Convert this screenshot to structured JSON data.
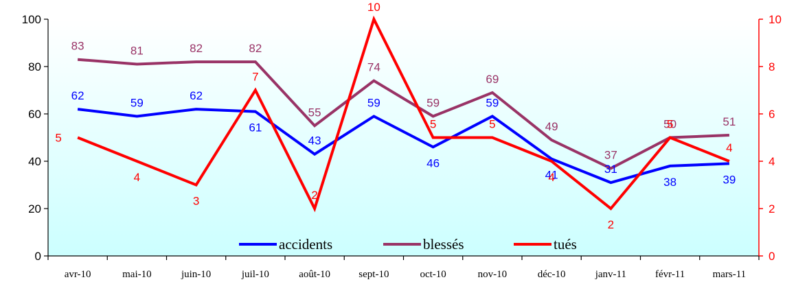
{
  "chart_data": {
    "type": "line",
    "categories": [
      "avr-10",
      "mai-10",
      "juin-10",
      "juil-10",
      "août-10",
      "sept-10",
      "oct-10",
      "nov-10",
      "déc-10",
      "janv-11",
      "févr-11",
      "mars-11"
    ],
    "series": [
      {
        "name": "accidents",
        "axis": "left",
        "color": "#0000ff",
        "values": [
          62,
          59,
          62,
          61,
          43,
          59,
          46,
          59,
          41,
          31,
          38,
          39
        ]
      },
      {
        "name": "blessés",
        "axis": "left",
        "color": "#993366",
        "values": [
          83,
          81,
          82,
          82,
          55,
          74,
          59,
          69,
          49,
          37,
          50,
          51
        ]
      },
      {
        "name": "tués",
        "axis": "right",
        "color": "#ff0000",
        "values": [
          5,
          4,
          3,
          7,
          2,
          10,
          5,
          5,
          4,
          2,
          5,
          4
        ]
      }
    ],
    "y_left": {
      "min": 0,
      "max": 100,
      "ticks": [
        "0",
        "20",
        "40",
        "60",
        "80",
        "100"
      ]
    },
    "y_right": {
      "min": 0,
      "max": 10,
      "ticks": [
        "0",
        "2",
        "4",
        "6",
        "8",
        "10"
      ],
      "color": "#ff0000"
    },
    "background_gradient": [
      "#ffffff",
      "#ccffff"
    ],
    "legend_position": "bottom-center",
    "grid": false
  }
}
